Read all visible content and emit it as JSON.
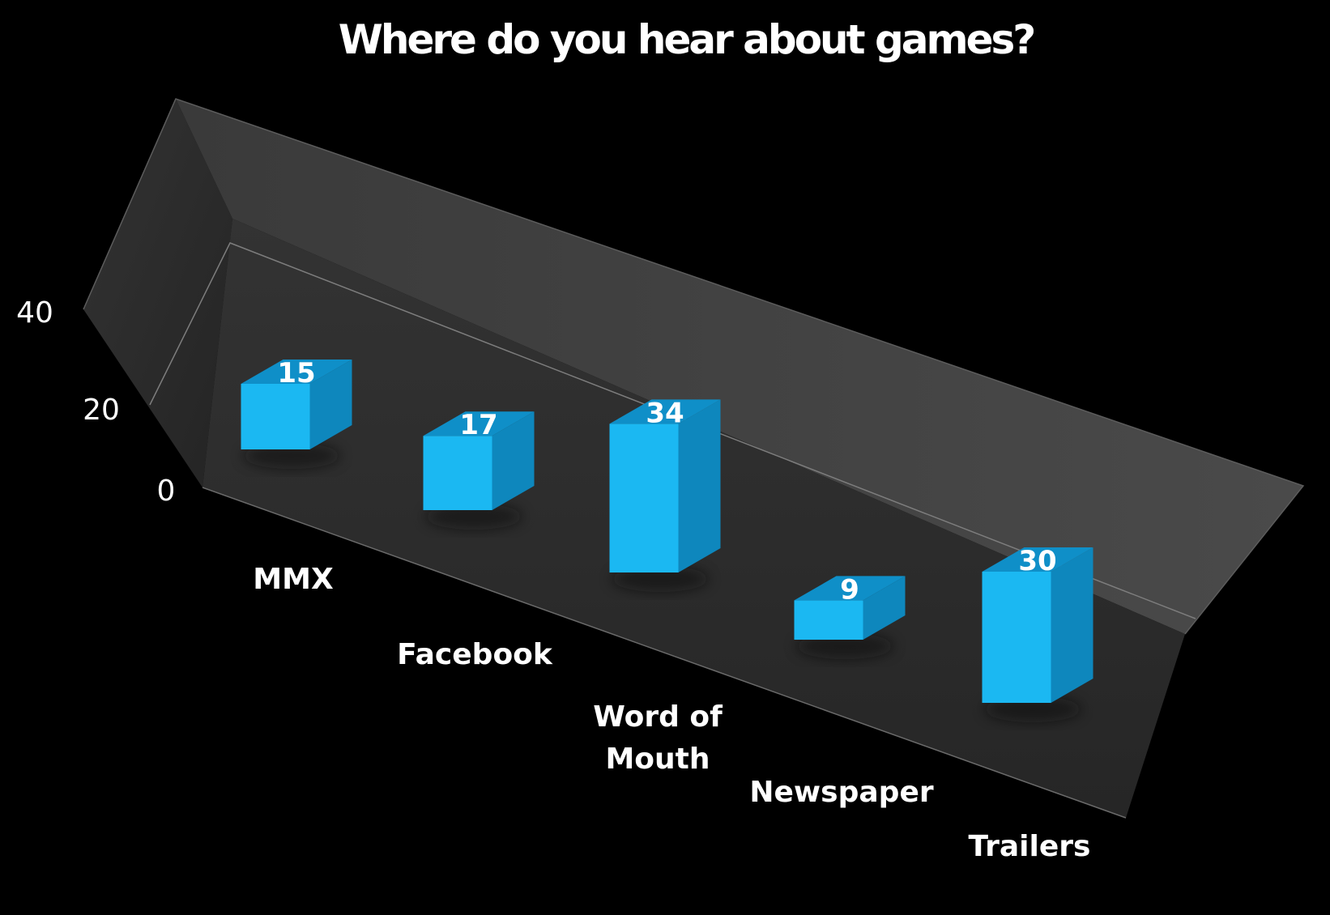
{
  "chart_data": {
    "type": "bar",
    "style": "3d-column",
    "title": "Where do you hear about games?",
    "categories": [
      "MMX",
      "Facebook",
      "Word of\nMouth",
      "Newspaper",
      "Trailers"
    ],
    "values": [
      15,
      17,
      34,
      9,
      30
    ],
    "data_labels": [
      "15",
      "17",
      "34",
      "9",
      "30"
    ],
    "yticks": [
      "0",
      "20",
      "40"
    ],
    "ylim": [
      0,
      40
    ],
    "xlabel": "",
    "ylabel": "",
    "grid": true,
    "legend": "none"
  },
  "colors": {
    "background": "#000000",
    "wall": "#454545",
    "floor": "#2b2b2b",
    "bar_front": "#1bb8f2",
    "bar_side": "#0e87bd",
    "bar_top": "#0f8fc8",
    "text": "#ffffff"
  }
}
